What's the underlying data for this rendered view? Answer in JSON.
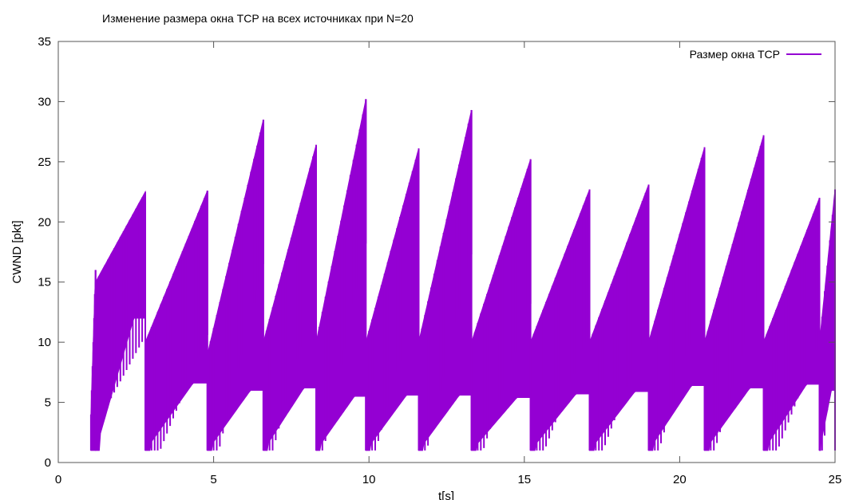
{
  "chart_data": {
    "type": "line",
    "title": "Изменение размера окна TCP на всех источниках при N=20",
    "xlabel": "t[s]",
    "ylabel": "CWND [pkt]",
    "xlim": [
      0,
      25
    ],
    "ylim": [
      0,
      35
    ],
    "xticks": [
      "0",
      "5",
      "10",
      "15",
      "20",
      "25"
    ],
    "yticks": [
      "0",
      "5",
      "10",
      "15",
      "20",
      "25",
      "30",
      "35"
    ],
    "grid": false,
    "legend_position": "top-right",
    "series": [
      {
        "name": "Размер окна TCP",
        "color": "#9400d3",
        "segments": [
          {
            "t_start": 1.05,
            "t_end": 1.2,
            "low": 1,
            "high": 16,
            "drop": 1,
            "offset": 0
          },
          {
            "t_start": 1.2,
            "t_end": 2.8,
            "low": 1,
            "high": 22.5,
            "drop": 12,
            "offset": 9
          },
          {
            "t_start": 2.8,
            "t_end": 4.8,
            "low": 1,
            "high": 22.6,
            "drop": 6.6,
            "offset": 10
          },
          {
            "t_start": 4.8,
            "t_end": 6.6,
            "low": 1,
            "high": 28.5,
            "drop": 6,
            "offset": 9
          },
          {
            "t_start": 6.6,
            "t_end": 8.3,
            "low": 1,
            "high": 26.4,
            "drop": 6.2,
            "offset": 10
          },
          {
            "t_start": 8.3,
            "t_end": 9.9,
            "low": 1,
            "high": 30.2,
            "drop": 5.5,
            "offset": 10
          },
          {
            "t_start": 9.9,
            "t_end": 11.6,
            "low": 1,
            "high": 26.1,
            "drop": 5.6,
            "offset": 10
          },
          {
            "t_start": 11.6,
            "t_end": 13.3,
            "low": 1,
            "high": 29.3,
            "drop": 5.6,
            "offset": 10
          },
          {
            "t_start": 13.3,
            "t_end": 15.2,
            "low": 1,
            "high": 25.2,
            "drop": 5.4,
            "offset": 10
          },
          {
            "t_start": 15.2,
            "t_end": 17.1,
            "low": 1,
            "high": 22.7,
            "drop": 5.7,
            "offset": 10
          },
          {
            "t_start": 17.1,
            "t_end": 19.0,
            "low": 1,
            "high": 23.1,
            "drop": 5.9,
            "offset": 10
          },
          {
            "t_start": 19.0,
            "t_end": 20.8,
            "low": 1,
            "high": 26.2,
            "drop": 6.4,
            "offset": 10
          },
          {
            "t_start": 20.8,
            "t_end": 22.7,
            "low": 1,
            "high": 27.2,
            "drop": 6.2,
            "offset": 10
          },
          {
            "t_start": 22.7,
            "t_end": 24.5,
            "low": 1,
            "high": 22.0,
            "drop": 6.5,
            "offset": 10
          },
          {
            "t_start": 24.5,
            "t_end": 25.0,
            "low": 1,
            "high": 22.7,
            "drop": 6.0,
            "offset": 10
          }
        ]
      }
    ]
  }
}
